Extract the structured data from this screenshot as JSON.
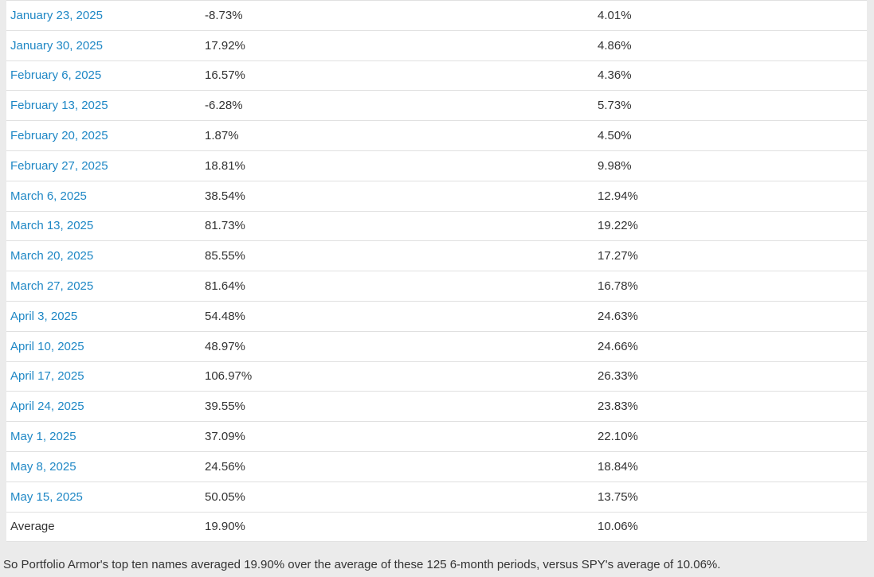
{
  "colors": {
    "page_background": "#ebebeb",
    "table_background": "#ffffff",
    "row_border": "#e0e0e0",
    "link_blue": "#1e87c5",
    "body_text": "#333333"
  },
  "table": {
    "rows": [
      {
        "date": "January 23, 2025",
        "top_ten_return": "-8.73%",
        "spy_return": "4.01%"
      },
      {
        "date": "January 30, 2025",
        "top_ten_return": "17.92%",
        "spy_return": "4.86%"
      },
      {
        "date": "February 6, 2025",
        "top_ten_return": "16.57%",
        "spy_return": "4.36%"
      },
      {
        "date": "February 13, 2025",
        "top_ten_return": "-6.28%",
        "spy_return": "5.73%"
      },
      {
        "date": "February 20, 2025",
        "top_ten_return": "1.87%",
        "spy_return": "4.50%"
      },
      {
        "date": "February 27, 2025",
        "top_ten_return": "18.81%",
        "spy_return": "9.98%"
      },
      {
        "date": "March 6, 2025",
        "top_ten_return": "38.54%",
        "spy_return": "12.94%"
      },
      {
        "date": "March 13, 2025",
        "top_ten_return": "81.73%",
        "spy_return": "19.22%"
      },
      {
        "date": "March 20, 2025",
        "top_ten_return": "85.55%",
        "spy_return": "17.27%"
      },
      {
        "date": "March 27, 2025",
        "top_ten_return": "81.64%",
        "spy_return": "16.78%"
      },
      {
        "date": "April 3, 2025",
        "top_ten_return": "54.48%",
        "spy_return": "24.63%"
      },
      {
        "date": "April 10, 2025",
        "top_ten_return": "48.97%",
        "spy_return": "24.66%"
      },
      {
        "date": "April 17, 2025",
        "top_ten_return": "106.97%",
        "spy_return": "26.33%"
      },
      {
        "date": "April 24, 2025",
        "top_ten_return": "39.55%",
        "spy_return": "23.83%"
      },
      {
        "date": "May 1, 2025",
        "top_ten_return": "37.09%",
        "spy_return": "22.10%"
      },
      {
        "date": "May 8, 2025",
        "top_ten_return": "24.56%",
        "spy_return": "18.84%"
      },
      {
        "date": "May 15, 2025",
        "top_ten_return": "50.05%",
        "spy_return": "13.75%"
      },
      {
        "date": "Average",
        "top_ten_return": "19.90%",
        "spy_return": "10.06%"
      }
    ]
  },
  "footer": {
    "text": "So Portfolio Armor's top ten names averaged 19.90% over the average of these 125 6-month periods, versus SPY's average of 10.06%."
  },
  "chart_data": {
    "type": "table",
    "columns": [
      "date",
      "top_ten_names_6_month_return_pct",
      "spy_6_month_return_pct"
    ],
    "rows": [
      [
        "January 23, 2025",
        -8.73,
        4.01
      ],
      [
        "January 30, 2025",
        17.92,
        4.86
      ],
      [
        "February 6, 2025",
        16.57,
        4.36
      ],
      [
        "February 13, 2025",
        -6.28,
        5.73
      ],
      [
        "February 20, 2025",
        1.87,
        4.5
      ],
      [
        "February 27, 2025",
        18.81,
        9.98
      ],
      [
        "March 6, 2025",
        38.54,
        12.94
      ],
      [
        "March 13, 2025",
        81.73,
        19.22
      ],
      [
        "March 20, 2025",
        85.55,
        17.27
      ],
      [
        "March 27, 2025",
        81.64,
        16.78
      ],
      [
        "April 3, 2025",
        54.48,
        24.63
      ],
      [
        "April 10, 2025",
        48.97,
        24.66
      ],
      [
        "April 17, 2025",
        106.97,
        26.33
      ],
      [
        "April 24, 2025",
        39.55,
        23.83
      ],
      [
        "May 1, 2025",
        37.09,
        22.1
      ],
      [
        "May 8, 2025",
        24.56,
        18.84
      ],
      [
        "May 15, 2025",
        50.05,
        13.75
      ]
    ],
    "summary_row": [
      "Average",
      19.9,
      10.06
    ],
    "notes": "Dates are hyperlinks; no visible column headers (table cropped at top)."
  }
}
